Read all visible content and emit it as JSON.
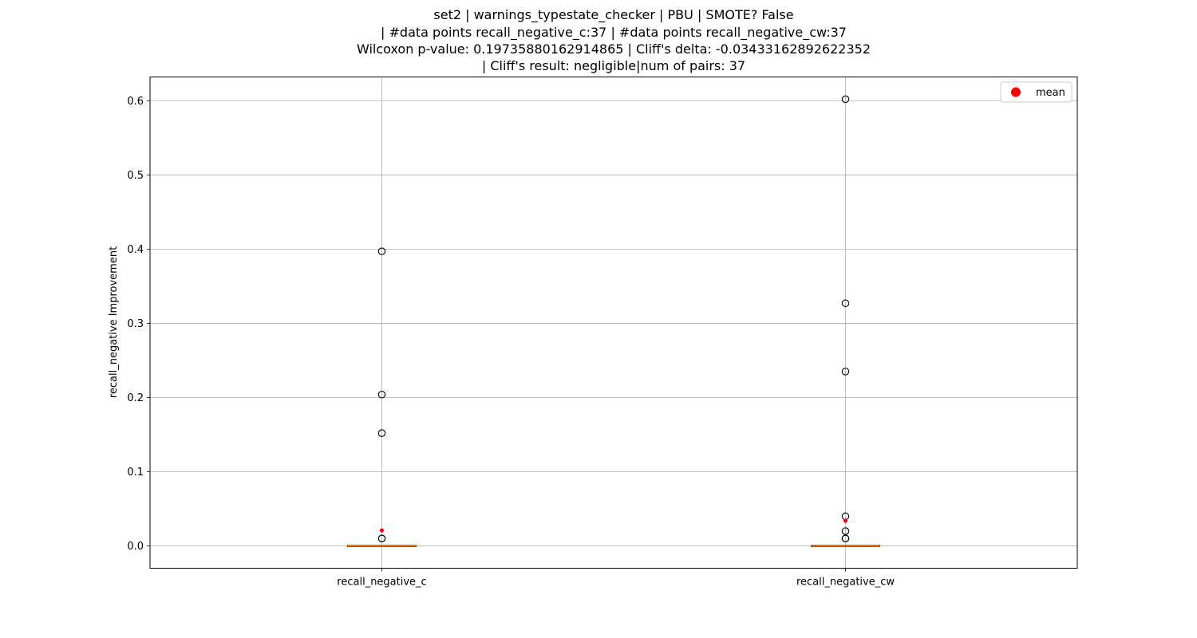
{
  "chart_data": {
    "type": "box",
    "title_lines": [
      "set2 | warnings_typestate_checker | PBU | SMOTE? False",
      "| #data points recall_negative_c:37 | #data points recall_negative_cw:37",
      "Wilcoxon p-value: 0.19735880162914865 | Cliff's delta: -0.03433162892622352",
      "| Cliff's result: negligible|num of pairs: 37"
    ],
    "ylabel": "recall_negative Improvement",
    "ylim": [
      -0.03,
      0.632
    ],
    "yticks": [
      "0.0",
      "0.1",
      "0.2",
      "0.3",
      "0.4",
      "0.5",
      "0.6"
    ],
    "grid": true,
    "categories": [
      "recall_negative_c",
      "recall_negative_cw"
    ],
    "boxes": [
      {
        "name": "recall_negative_c",
        "q1": 0.0,
        "median": 0.0,
        "q3": 0.0,
        "whisker_low": 0.0,
        "whisker_high": 0.0,
        "outliers": [
          0.397,
          0.204,
          0.152,
          0.01,
          0.01
        ],
        "mean": 0.021
      },
      {
        "name": "recall_negative_cw",
        "q1": 0.0,
        "median": 0.0,
        "q3": 0.0,
        "whisker_low": 0.0,
        "whisker_high": 0.0,
        "outliers": [
          0.602,
          0.327,
          0.235,
          0.04,
          0.02,
          0.01,
          0.01
        ],
        "mean": 0.034
      }
    ],
    "legend": {
      "placement": "top-right",
      "entries": [
        {
          "label": "mean",
          "color": "#ff0000"
        }
      ]
    },
    "colors": {
      "median": "#ff7f0e",
      "mean": "#ff0000",
      "grid": "#b0b0b0",
      "outlier_edge": "#000000"
    }
  }
}
